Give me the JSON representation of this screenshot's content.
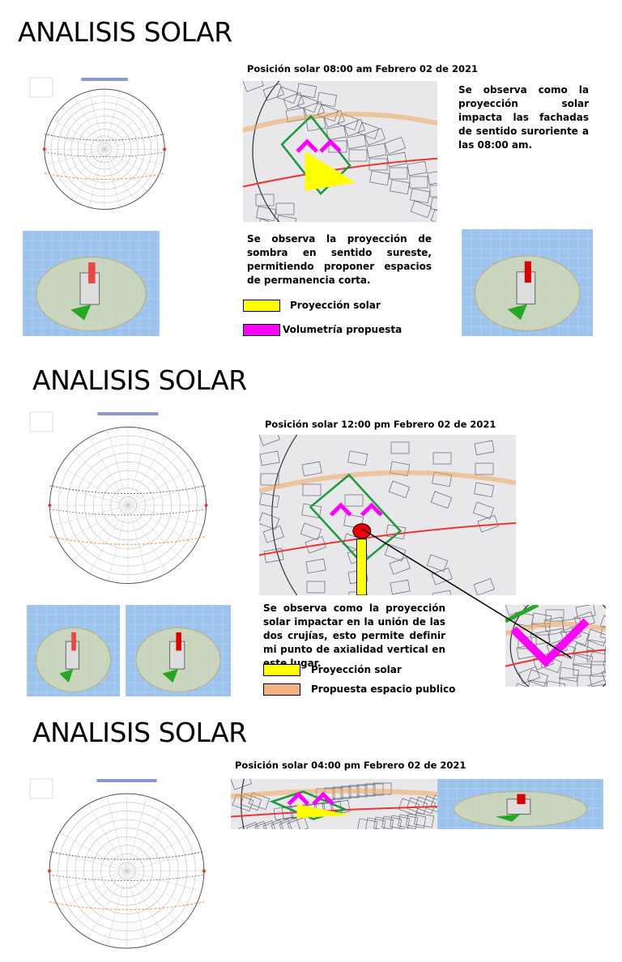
{
  "sections": [
    {
      "title": "ANALISIS SOLAR",
      "caption": "Posición solar 08:00 am Febrero 02 de 2021",
      "notes": [
        "Se observa como la proyección solar impacta las fachadas de sentido suroriente a las 08:00 am.",
        "Se observa la proyección de sombra en sentido sureste, permitiendo proponer espacios de permanencia corta."
      ],
      "legend": [
        {
          "label": "Proyección solar"
        },
        {
          "label": "Volumetría propuesta"
        }
      ]
    },
    {
      "title": "ANALISIS SOLAR",
      "caption": "Posición solar 12:00 pm Febrero 02 de 2021",
      "notes": [
        "Se observa como la proyección solar impactar en la unión de las dos crujías, esto permite definir mi punto de axialidad vertical en este lugar."
      ],
      "legend": [
        {
          "label": "Proyección solar"
        },
        {
          "label": "Propuesta espacio publico"
        }
      ]
    },
    {
      "title": "ANALISIS SOLAR",
      "caption": "Posición solar 04:00 pm Febrero 02 de 2021"
    }
  ]
}
